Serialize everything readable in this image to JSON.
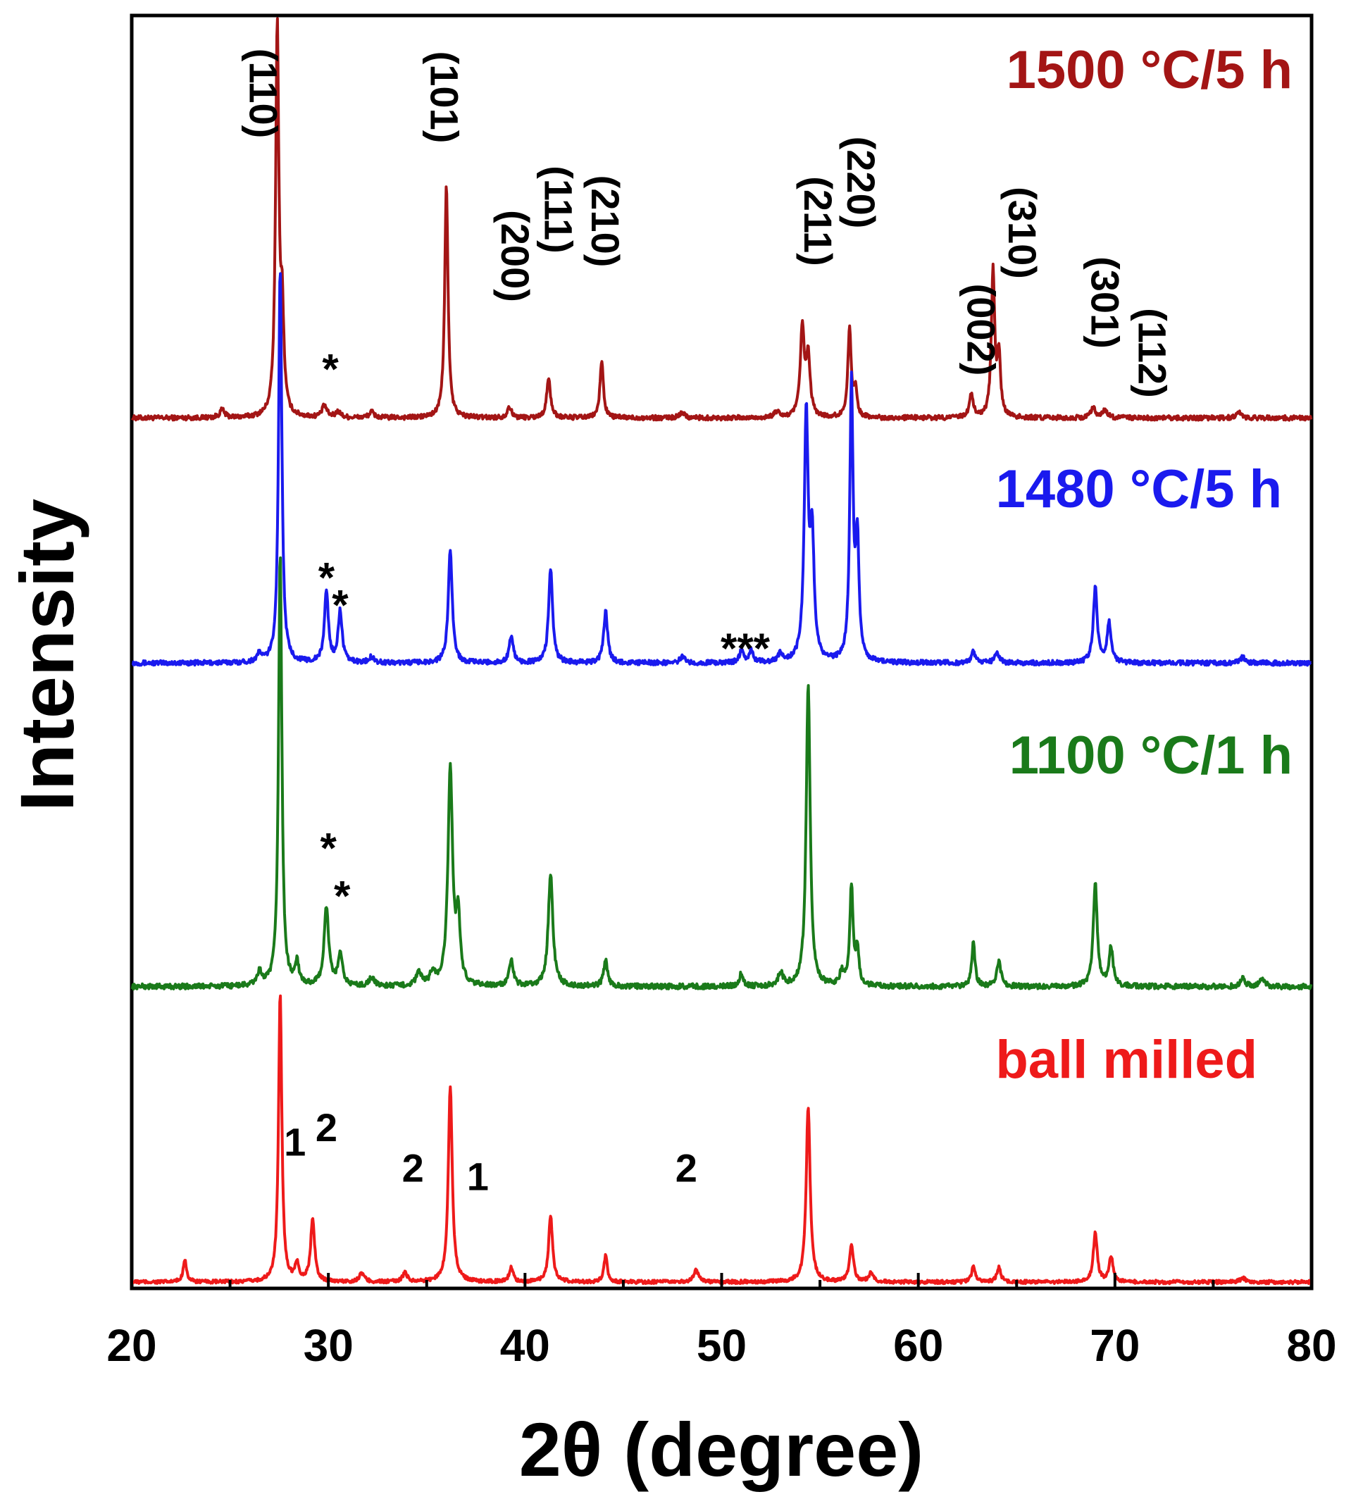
{
  "chart_data": {
    "type": "line",
    "title": "",
    "xlabel": "2θ (degree)",
    "ylabel": "Intensity",
    "xlim": [
      20,
      80
    ],
    "xticks": [
      20,
      30,
      40,
      50,
      60,
      70,
      80
    ],
    "xtick_labels": [
      "20",
      "30",
      "40",
      "50",
      "60",
      "70",
      "80"
    ],
    "yticks": false,
    "grid": false,
    "stacked_offset": true,
    "series": [
      {
        "name": "1500 °C/5 h",
        "color": "#a31515",
        "peaks": [
          [
            24.6,
            0.02,
            0.15
          ],
          [
            27.4,
            1.0,
            0.1
          ],
          [
            27.65,
            0.24,
            0.1
          ],
          [
            29.8,
            0.03,
            0.15
          ],
          [
            30.5,
            0.015,
            0.15
          ],
          [
            32.2,
            0.015,
            0.15
          ],
          [
            36.0,
            0.6,
            0.1
          ],
          [
            39.2,
            0.03,
            0.12
          ],
          [
            41.2,
            0.1,
            0.12
          ],
          [
            43.9,
            0.15,
            0.1
          ],
          [
            48.0,
            0.015,
            0.15
          ],
          [
            52.8,
            0.015,
            0.15
          ],
          [
            54.1,
            0.23,
            0.12
          ],
          [
            54.4,
            0.15,
            0.12
          ],
          [
            56.5,
            0.23,
            0.1
          ],
          [
            56.8,
            0.07,
            0.1
          ],
          [
            62.7,
            0.06,
            0.12
          ],
          [
            63.8,
            0.38,
            0.1
          ],
          [
            64.1,
            0.15,
            0.1
          ],
          [
            68.9,
            0.025,
            0.15
          ],
          [
            69.5,
            0.02,
            0.15
          ],
          [
            76.3,
            0.015,
            0.15
          ]
        ]
      },
      {
        "name": "1480 °C/5 h",
        "color": "#1a1aee",
        "peaks": [
          [
            26.5,
            0.02,
            0.15
          ],
          [
            27.55,
            1.0,
            0.1
          ],
          [
            29.9,
            0.18,
            0.12
          ],
          [
            30.6,
            0.13,
            0.12
          ],
          [
            32.2,
            0.015,
            0.15
          ],
          [
            36.2,
            0.29,
            0.12
          ],
          [
            39.3,
            0.07,
            0.12
          ],
          [
            41.3,
            0.24,
            0.12
          ],
          [
            44.1,
            0.13,
            0.12
          ],
          [
            48.0,
            0.015,
            0.15
          ],
          [
            51.0,
            0.03,
            0.12
          ],
          [
            51.5,
            0.03,
            0.12
          ],
          [
            53.0,
            0.02,
            0.15
          ],
          [
            54.3,
            0.62,
            0.12
          ],
          [
            54.6,
            0.3,
            0.12
          ],
          [
            56.6,
            0.7,
            0.1
          ],
          [
            56.9,
            0.3,
            0.1
          ],
          [
            62.8,
            0.03,
            0.12
          ],
          [
            64.0,
            0.03,
            0.12
          ],
          [
            69.0,
            0.19,
            0.12
          ],
          [
            69.7,
            0.1,
            0.12
          ],
          [
            76.5,
            0.015,
            0.15
          ]
        ]
      },
      {
        "name": "1100 °C/1 h",
        "color": "#1a7a1a",
        "peaks": [
          [
            26.5,
            0.03,
            0.15
          ],
          [
            27.55,
            1.0,
            0.1
          ],
          [
            28.4,
            0.05,
            0.12
          ],
          [
            29.9,
            0.18,
            0.14
          ],
          [
            30.6,
            0.07,
            0.14
          ],
          [
            32.2,
            0.02,
            0.15
          ],
          [
            34.6,
            0.03,
            0.15
          ],
          [
            35.3,
            0.03,
            0.15
          ],
          [
            36.2,
            0.5,
            0.14
          ],
          [
            36.6,
            0.15,
            0.12
          ],
          [
            39.3,
            0.06,
            0.12
          ],
          [
            41.3,
            0.26,
            0.14
          ],
          [
            44.1,
            0.06,
            0.12
          ],
          [
            51.0,
            0.03,
            0.12
          ],
          [
            53.0,
            0.03,
            0.15
          ],
          [
            54.4,
            0.7,
            0.12
          ],
          [
            56.1,
            0.03,
            0.12
          ],
          [
            56.6,
            0.23,
            0.1
          ],
          [
            56.9,
            0.08,
            0.1
          ],
          [
            62.8,
            0.1,
            0.1
          ],
          [
            64.1,
            0.06,
            0.12
          ],
          [
            69.0,
            0.24,
            0.12
          ],
          [
            69.8,
            0.09,
            0.12
          ],
          [
            76.5,
            0.02,
            0.15
          ],
          [
            77.5,
            0.02,
            0.15
          ]
        ]
      },
      {
        "name": "ball milled",
        "color": "#ee1a1a",
        "peaks": [
          [
            22.7,
            0.08,
            0.1
          ],
          [
            27.55,
            1.0,
            0.1
          ],
          [
            28.4,
            0.06,
            0.12
          ],
          [
            29.2,
            0.22,
            0.12
          ],
          [
            31.7,
            0.03,
            0.15
          ],
          [
            33.9,
            0.03,
            0.15
          ],
          [
            36.2,
            0.68,
            0.12
          ],
          [
            39.3,
            0.05,
            0.12
          ],
          [
            41.3,
            0.23,
            0.12
          ],
          [
            44.1,
            0.09,
            0.1
          ],
          [
            48.7,
            0.04,
            0.15
          ],
          [
            54.4,
            0.61,
            0.12
          ],
          [
            56.6,
            0.13,
            0.12
          ],
          [
            57.6,
            0.03,
            0.15
          ],
          [
            62.8,
            0.06,
            0.1
          ],
          [
            64.1,
            0.05,
            0.12
          ],
          [
            69.0,
            0.17,
            0.12
          ],
          [
            69.8,
            0.09,
            0.12
          ],
          [
            76.5,
            0.015,
            0.15
          ]
        ]
      }
    ],
    "annotations": [
      {
        "text": "(110)",
        "x": 26.0,
        "series": "1500 °C/5 h",
        "level": 0.85
      },
      {
        "text": "(101)",
        "x": 35.2,
        "series": "1500 °C/5 h",
        "level": 0.84
      },
      {
        "text": "(200)",
        "x": 38.8,
        "series": "1500 °C/5 h",
        "level": 0.43
      },
      {
        "text": "(111)",
        "x": 41.0,
        "series": "1500 °C/5 h",
        "level": 0.55
      },
      {
        "text": "(210)",
        "x": 43.4,
        "series": "1500 °C/5 h",
        "level": 0.52
      },
      {
        "text": "(211)",
        "x": 54.2,
        "series": "1500 °C/5 h",
        "level": 0.52
      },
      {
        "text": "(220)",
        "x": 56.4,
        "series": "1500 °C/5 h",
        "level": 0.62
      },
      {
        "text": "(002)",
        "x": 62.5,
        "series": "1500 °C/5 h",
        "level": 0.24
      },
      {
        "text": "(310)",
        "x": 64.6,
        "series": "1500 °C/5 h",
        "level": 0.49
      },
      {
        "text": "(301)",
        "x": 68.8,
        "series": "1500 °C/5 h",
        "level": 0.31
      },
      {
        "text": "(112)",
        "x": 71.2,
        "series": "1500 °C/5 h",
        "level": 0.18
      }
    ],
    "markers": [
      {
        "text": "*",
        "x": 30.1,
        "series": "1500 °C/5 h",
        "level": 0.17
      },
      {
        "text": "*",
        "x": 29.9,
        "series": "1480 °C/5 h",
        "level": 0.26
      },
      {
        "text": "*",
        "x": 30.6,
        "series": "1480 °C/5 h",
        "level": 0.19
      },
      {
        "text": "***",
        "x": 51.2,
        "series": "1480 °C/5 h",
        "level": 0.08
      },
      {
        "text": "*",
        "x": 30.0,
        "series": "1100 °C/1 h",
        "level": 0.36
      },
      {
        "text": "*",
        "x": 30.7,
        "series": "1100 °C/1 h",
        "level": 0.25
      },
      {
        "text": "1",
        "x": 28.3,
        "series": "ball milled",
        "level": 0.45
      },
      {
        "text": "2",
        "x": 29.9,
        "series": "ball milled",
        "level": 0.5
      },
      {
        "text": "2",
        "x": 34.3,
        "series": "ball milled",
        "level": 0.36
      },
      {
        "text": "1",
        "x": 37.6,
        "series": "ball milled",
        "level": 0.33
      },
      {
        "text": "2",
        "x": 48.2,
        "series": "ball milled",
        "level": 0.36
      }
    ],
    "legend": [
      {
        "text": "1500 °C/5 h",
        "series": "1500 °C/5 h",
        "color": "#a31515"
      },
      {
        "text": "1480 °C/5 h",
        "series": "1480 °C/5 h",
        "color": "#1a1aee"
      },
      {
        "text": "1100 °C/1 h",
        "series": "1100 °C/1 h",
        "color": "#1a7a1a"
      },
      {
        "text": "ball milled",
        "series": "ball milled",
        "color": "#ee1a1a"
      }
    ]
  }
}
